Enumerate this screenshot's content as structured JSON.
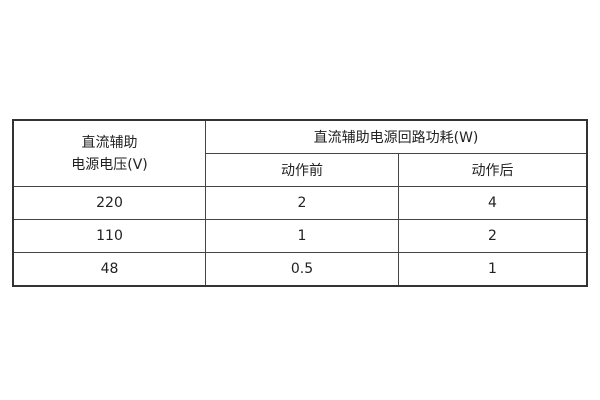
{
  "table": {
    "header": {
      "col1_line1": "直流辅助",
      "col1_line2": "电源电压(V)",
      "group": "直流辅助电源回路功耗(W)",
      "sub1": "动作前",
      "sub2": "动作后"
    },
    "rows": [
      {
        "voltage": "220",
        "before": "2",
        "after": "4"
      },
      {
        "voltage": "110",
        "before": "1",
        "after": "2"
      },
      {
        "voltage": "48",
        "before": "0.5",
        "after": "1"
      }
    ]
  }
}
